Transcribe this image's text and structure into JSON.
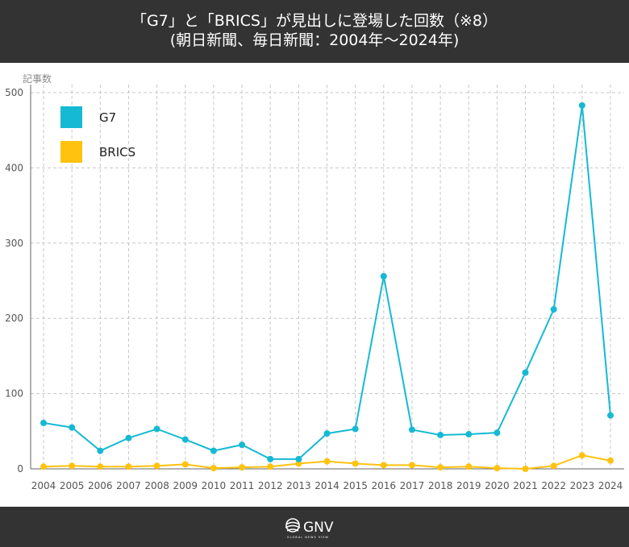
{
  "header": {
    "title_line1": "「G7」と「BRICS」が見出しに登場した回数（※8）",
    "title_line2": "(朝日新聞、毎日新聞：2004年〜2024年)"
  },
  "chart_data": {
    "type": "line",
    "ylabel": "記事数",
    "ylim": [
      0,
      500
    ],
    "yticks": [
      0,
      100,
      200,
      300,
      400,
      500
    ],
    "grid": true,
    "legend_position": "top-left",
    "x": [
      "2004",
      "2005",
      "2006",
      "2007",
      "2008",
      "2009",
      "2010",
      "2011",
      "2012",
      "2013",
      "2014",
      "2015",
      "2016",
      "2017",
      "2018",
      "2019",
      "2020",
      "2021",
      "2022",
      "2023",
      "2024"
    ],
    "series": [
      {
        "name": "G7",
        "color": "#16b9d4",
        "values": [
          61,
          55,
          24,
          41,
          53,
          39,
          24,
          32,
          13,
          13,
          47,
          53,
          256,
          52,
          45,
          46,
          48,
          128,
          212,
          483,
          71
        ]
      },
      {
        "name": "BRICS",
        "color": "#ffc20e",
        "values": [
          3,
          4,
          3,
          3,
          4,
          6,
          1,
          2,
          3,
          7,
          10,
          7,
          5,
          5,
          2,
          3,
          1,
          0,
          4,
          18,
          11
        ]
      }
    ]
  },
  "footer": {
    "logo_text": "GNV",
    "logo_subtext": "GLOBAL NEWS VIEW",
    "logo_icon": "globe-wave-icon"
  }
}
